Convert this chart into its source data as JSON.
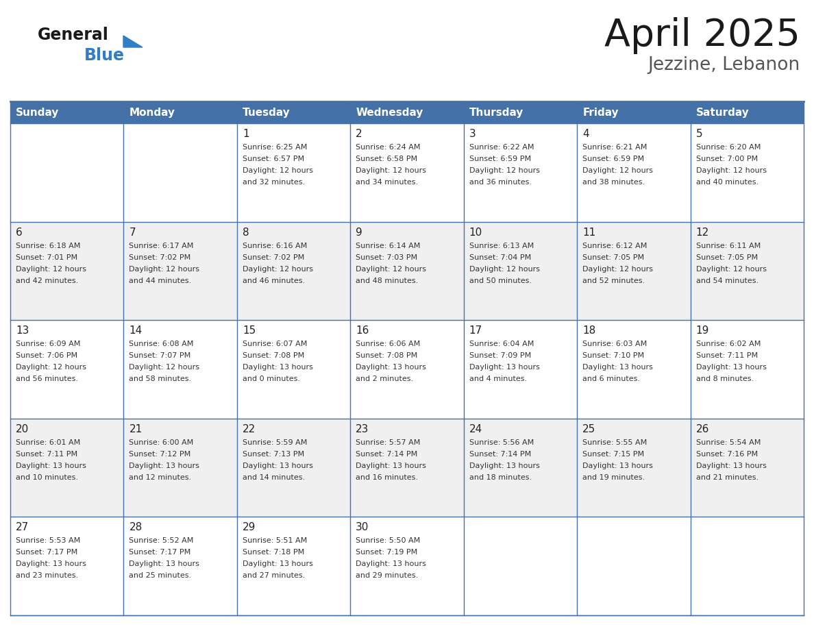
{
  "title": "April 2025",
  "subtitle": "Jezzine, Lebanon",
  "days_of_week": [
    "Sunday",
    "Monday",
    "Tuesday",
    "Wednesday",
    "Thursday",
    "Friday",
    "Saturday"
  ],
  "header_bg": "#4472A8",
  "header_text": "#FFFFFF",
  "cell_bg_white": "#FFFFFF",
  "cell_bg_gray": "#F0F0F0",
  "day_number_color": "#222222",
  "text_color": "#333333",
  "border_color": "#4472A8",
  "line_color": "#4472A8",
  "logo_general_color": "#1A1A1A",
  "logo_blue_color": "#2F7EC7",
  "title_color": "#1A1A1A",
  "subtitle_color": "#555555",
  "weeks": [
    {
      "days": [
        {
          "date": "",
          "info": ""
        },
        {
          "date": "",
          "info": ""
        },
        {
          "date": "1",
          "info": "Sunrise: 6:25 AM\nSunset: 6:57 PM\nDaylight: 12 hours\nand 32 minutes."
        },
        {
          "date": "2",
          "info": "Sunrise: 6:24 AM\nSunset: 6:58 PM\nDaylight: 12 hours\nand 34 minutes."
        },
        {
          "date": "3",
          "info": "Sunrise: 6:22 AM\nSunset: 6:59 PM\nDaylight: 12 hours\nand 36 minutes."
        },
        {
          "date": "4",
          "info": "Sunrise: 6:21 AM\nSunset: 6:59 PM\nDaylight: 12 hours\nand 38 minutes."
        },
        {
          "date": "5",
          "info": "Sunrise: 6:20 AM\nSunset: 7:00 PM\nDaylight: 12 hours\nand 40 minutes."
        }
      ]
    },
    {
      "days": [
        {
          "date": "6",
          "info": "Sunrise: 6:18 AM\nSunset: 7:01 PM\nDaylight: 12 hours\nand 42 minutes."
        },
        {
          "date": "7",
          "info": "Sunrise: 6:17 AM\nSunset: 7:02 PM\nDaylight: 12 hours\nand 44 minutes."
        },
        {
          "date": "8",
          "info": "Sunrise: 6:16 AM\nSunset: 7:02 PM\nDaylight: 12 hours\nand 46 minutes."
        },
        {
          "date": "9",
          "info": "Sunrise: 6:14 AM\nSunset: 7:03 PM\nDaylight: 12 hours\nand 48 minutes."
        },
        {
          "date": "10",
          "info": "Sunrise: 6:13 AM\nSunset: 7:04 PM\nDaylight: 12 hours\nand 50 minutes."
        },
        {
          "date": "11",
          "info": "Sunrise: 6:12 AM\nSunset: 7:05 PM\nDaylight: 12 hours\nand 52 minutes."
        },
        {
          "date": "12",
          "info": "Sunrise: 6:11 AM\nSunset: 7:05 PM\nDaylight: 12 hours\nand 54 minutes."
        }
      ]
    },
    {
      "days": [
        {
          "date": "13",
          "info": "Sunrise: 6:09 AM\nSunset: 7:06 PM\nDaylight: 12 hours\nand 56 minutes."
        },
        {
          "date": "14",
          "info": "Sunrise: 6:08 AM\nSunset: 7:07 PM\nDaylight: 12 hours\nand 58 minutes."
        },
        {
          "date": "15",
          "info": "Sunrise: 6:07 AM\nSunset: 7:08 PM\nDaylight: 13 hours\nand 0 minutes."
        },
        {
          "date": "16",
          "info": "Sunrise: 6:06 AM\nSunset: 7:08 PM\nDaylight: 13 hours\nand 2 minutes."
        },
        {
          "date": "17",
          "info": "Sunrise: 6:04 AM\nSunset: 7:09 PM\nDaylight: 13 hours\nand 4 minutes."
        },
        {
          "date": "18",
          "info": "Sunrise: 6:03 AM\nSunset: 7:10 PM\nDaylight: 13 hours\nand 6 minutes."
        },
        {
          "date": "19",
          "info": "Sunrise: 6:02 AM\nSunset: 7:11 PM\nDaylight: 13 hours\nand 8 minutes."
        }
      ]
    },
    {
      "days": [
        {
          "date": "20",
          "info": "Sunrise: 6:01 AM\nSunset: 7:11 PM\nDaylight: 13 hours\nand 10 minutes."
        },
        {
          "date": "21",
          "info": "Sunrise: 6:00 AM\nSunset: 7:12 PM\nDaylight: 13 hours\nand 12 minutes."
        },
        {
          "date": "22",
          "info": "Sunrise: 5:59 AM\nSunset: 7:13 PM\nDaylight: 13 hours\nand 14 minutes."
        },
        {
          "date": "23",
          "info": "Sunrise: 5:57 AM\nSunset: 7:14 PM\nDaylight: 13 hours\nand 16 minutes."
        },
        {
          "date": "24",
          "info": "Sunrise: 5:56 AM\nSunset: 7:14 PM\nDaylight: 13 hours\nand 18 minutes."
        },
        {
          "date": "25",
          "info": "Sunrise: 5:55 AM\nSunset: 7:15 PM\nDaylight: 13 hours\nand 19 minutes."
        },
        {
          "date": "26",
          "info": "Sunrise: 5:54 AM\nSunset: 7:16 PM\nDaylight: 13 hours\nand 21 minutes."
        }
      ]
    },
    {
      "days": [
        {
          "date": "27",
          "info": "Sunrise: 5:53 AM\nSunset: 7:17 PM\nDaylight: 13 hours\nand 23 minutes."
        },
        {
          "date": "28",
          "info": "Sunrise: 5:52 AM\nSunset: 7:17 PM\nDaylight: 13 hours\nand 25 minutes."
        },
        {
          "date": "29",
          "info": "Sunrise: 5:51 AM\nSunset: 7:18 PM\nDaylight: 13 hours\nand 27 minutes."
        },
        {
          "date": "30",
          "info": "Sunrise: 5:50 AM\nSunset: 7:19 PM\nDaylight: 13 hours\nand 29 minutes."
        },
        {
          "date": "",
          "info": ""
        },
        {
          "date": "",
          "info": ""
        },
        {
          "date": "",
          "info": ""
        }
      ]
    }
  ]
}
